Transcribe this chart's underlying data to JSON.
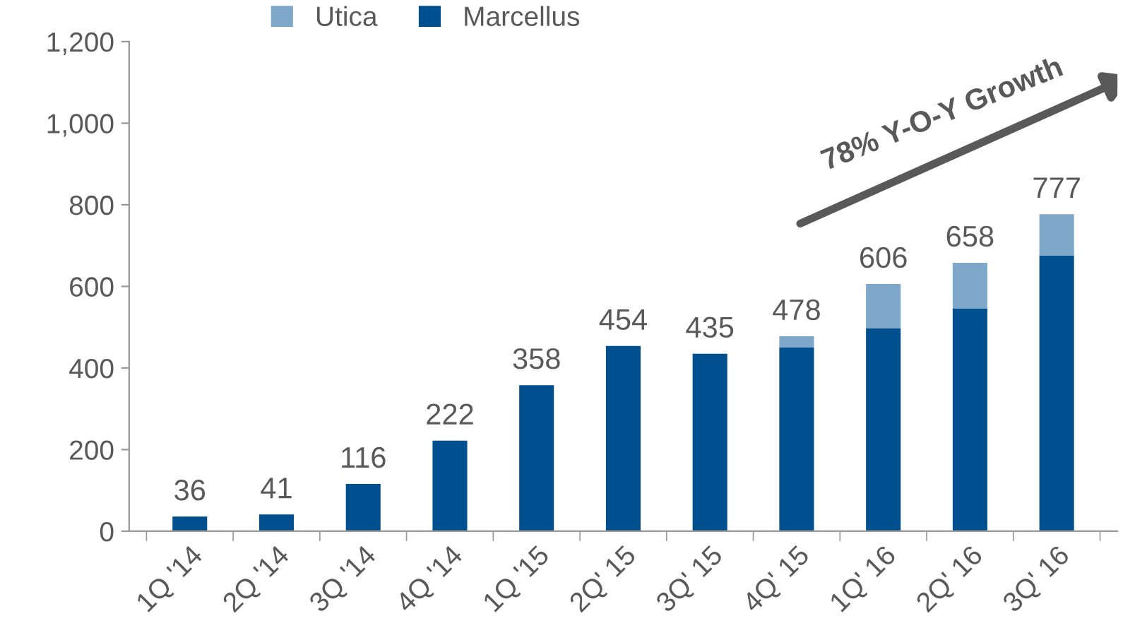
{
  "chart_data": {
    "type": "bar",
    "stacked": true,
    "categories": [
      "1Q '14",
      "2Q '14",
      "3Q '14",
      "4Q '14",
      "1Q '15",
      "2Q' 15",
      "3Q' 15",
      "4Q' 15",
      "1Q' 16",
      "2Q' 16",
      "3Q' 16"
    ],
    "series": [
      {
        "name": "Marcellus",
        "color": "#00508f",
        "values": [
          36,
          41,
          116,
          222,
          358,
          454,
          435,
          450,
          497,
          546,
          676
        ]
      },
      {
        "name": "Utica",
        "color": "#7fa7c9",
        "values": [
          null,
          null,
          null,
          null,
          null,
          null,
          null,
          28,
          109,
          112,
          101
        ]
      }
    ],
    "totals": [
      "36",
      "41",
      "116",
      "222",
      "358",
      "454",
      "435",
      "478",
      "606",
      "658",
      "777"
    ],
    "ylim": [
      0,
      1200
    ],
    "yticks": [
      0,
      200,
      400,
      600,
      800,
      {
        "value": 1000,
        "label": "1,000"
      },
      {
        "value": 1200,
        "label": "1,200"
      }
    ],
    "grid": false,
    "legend": "top",
    "annotations": [
      "78% Y-O-Y Growth"
    ]
  }
}
